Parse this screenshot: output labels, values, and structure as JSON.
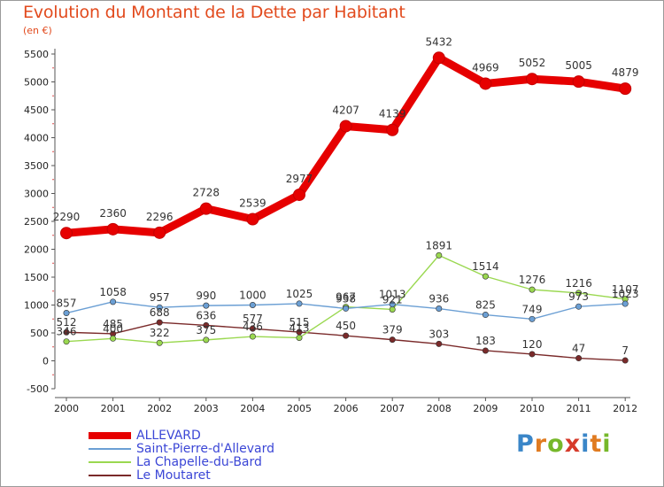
{
  "title": "Evolution du Montant de la Dette par Habitant",
  "subtitle": "(en €)",
  "chart_data": {
    "type": "line",
    "title": "Evolution du Montant de la Dette par Habitant",
    "subtitle": "(en €)",
    "xlabel": "",
    "ylabel": "",
    "categories": [
      "2000",
      "2001",
      "2002",
      "2003",
      "2004",
      "2005",
      "2006",
      "2007",
      "2008",
      "2009",
      "2010",
      "2011",
      "2012"
    ],
    "ylim": [
      -500,
      5500
    ],
    "yticks": [
      -500,
      0,
      500,
      1000,
      1500,
      2000,
      2500,
      3000,
      3500,
      4000,
      4500,
      5000,
      5500
    ],
    "grid": false,
    "legend_position": "bottom-left",
    "series": [
      {
        "name": "ALLEVARD",
        "color": "#e60000",
        "values": [
          2290,
          2360,
          2296,
          2728,
          2539,
          2977,
          4207,
          4139,
          5432,
          4969,
          5052,
          5005,
          4879
        ],
        "labels": [
          "2290",
          "2360",
          "2296",
          "2728",
          "2539",
          "2977",
          "4207",
          "4139",
          "5432",
          "4969",
          "5052",
          "5005",
          "4879"
        ]
      },
      {
        "name": "Saint-Pierre-d'Allevard",
        "color": "#6b9fd4",
        "values": [
          857,
          1058,
          957,
          990,
          1000,
          1025,
          938,
          1013,
          936,
          825,
          749,
          973,
          1023
        ],
        "labels": [
          "857",
          "1058",
          "957",
          "990",
          "1000",
          "1025",
          "938",
          "1013",
          "936",
          "825",
          "749",
          "973",
          "1023"
        ]
      },
      {
        "name": "La Chapelle-du-Bard",
        "color": "#9ad850",
        "values": [
          346,
          400,
          322,
          375,
          436,
          413,
          967,
          921,
          1891,
          1514,
          1276,
          1216,
          1107
        ],
        "labels": [
          "346",
          "400",
          "322",
          "375",
          "436",
          "413",
          "967",
          "921",
          "1891",
          "1514",
          "1276",
          "1216",
          "1107"
        ]
      },
      {
        "name": "Le Moutaret",
        "color": "#7a2a2a",
        "values": [
          512,
          485,
          688,
          636,
          577,
          515,
          450,
          379,
          303,
          183,
          120,
          47,
          7
        ],
        "labels": [
          "512",
          "485",
          "688",
          "636",
          "577",
          "515",
          "450",
          "379",
          "303",
          "183",
          "120",
          "47",
          "7"
        ]
      }
    ]
  },
  "logo": {
    "text": "Proxiti",
    "letters": [
      {
        "ch": "P",
        "color": "#3a86c8"
      },
      {
        "ch": "r",
        "color": "#e07b20"
      },
      {
        "ch": "o",
        "color": "#76b82a"
      },
      {
        "ch": "x",
        "color": "#d63a2a"
      },
      {
        "ch": "i",
        "color": "#3a86c8"
      },
      {
        "ch": "t",
        "color": "#e07b20"
      },
      {
        "ch": "i",
        "color": "#76b82a"
      }
    ]
  }
}
